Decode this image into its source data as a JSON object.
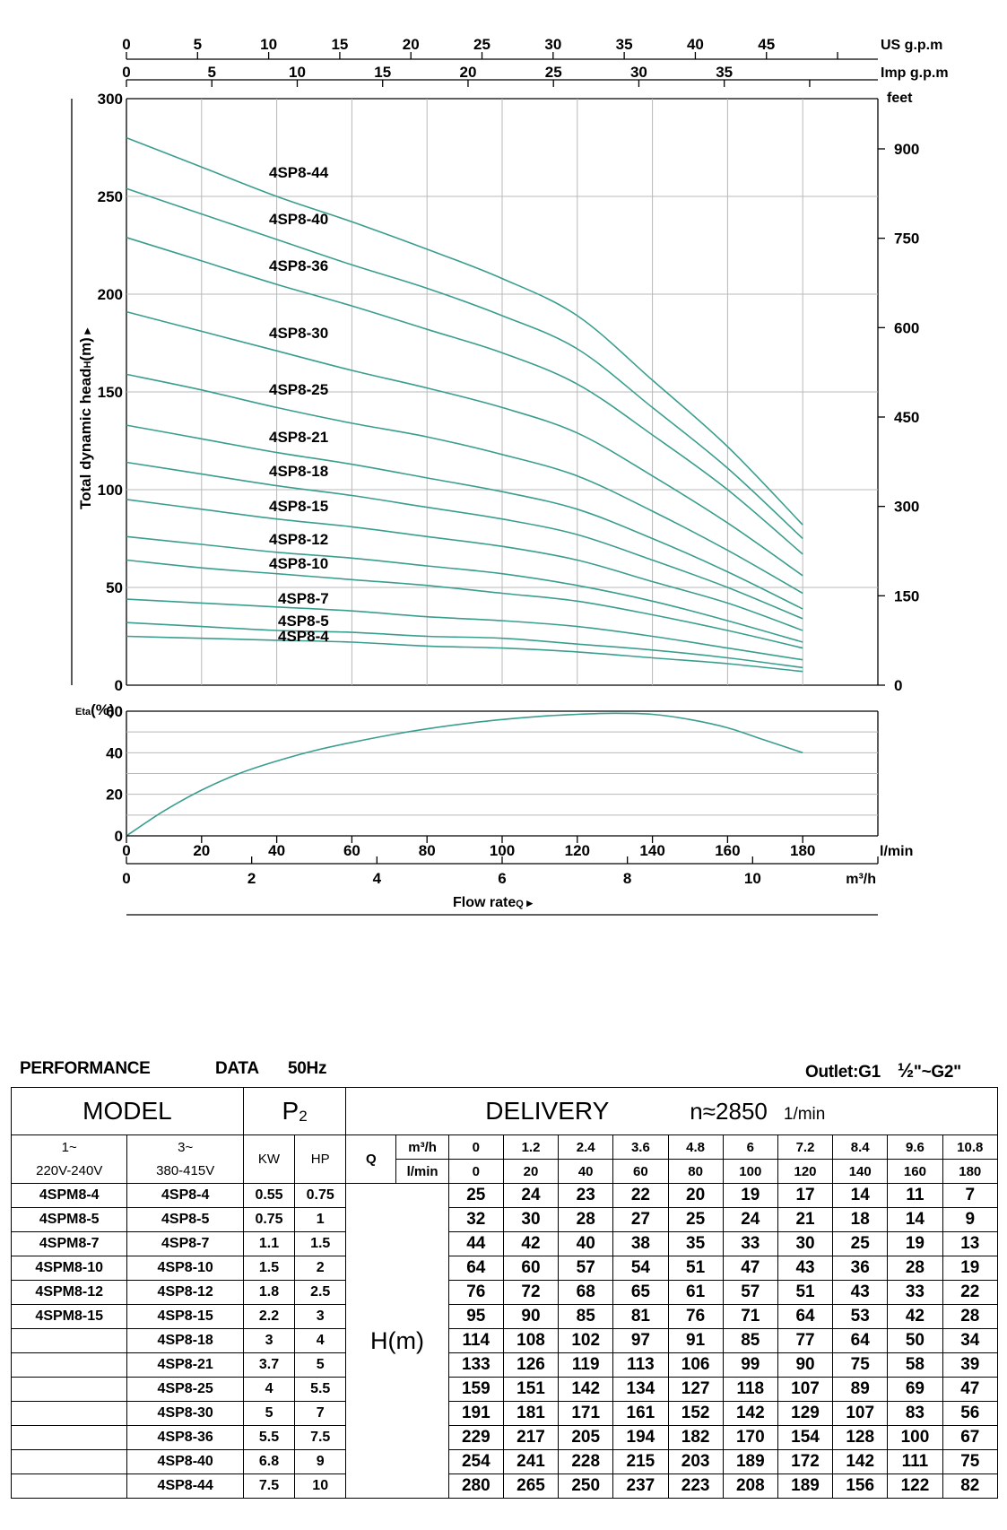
{
  "chart_data": [
    {
      "type": "line",
      "title": "",
      "ylabel": "Total dynamic head",
      "ylabel_symbol": "H",
      "ylabel_unit": "(m)",
      "xlabel": "Flow rate",
      "xlabel_symbol": "Q",
      "x_unit": "l/min",
      "xlim": [
        0,
        200
      ],
      "ylim": [
        0,
        300
      ],
      "y_ticks": [
        0,
        50,
        100,
        150,
        200,
        250,
        300
      ],
      "x_ticks": [
        0,
        20,
        40,
        60,
        80,
        100,
        120,
        140,
        160,
        180
      ],
      "grid": true,
      "right_axis": {
        "unit": "feet",
        "ticks": [
          0,
          150,
          300,
          450,
          600,
          750,
          900
        ]
      },
      "top_axis_us": {
        "unit": "US g.p.m",
        "ticks": [
          0,
          5,
          10,
          15,
          20,
          25,
          30,
          35,
          40,
          45
        ]
      },
      "top_axis_imp": {
        "unit": "Imp g.p.m",
        "ticks": [
          0,
          5,
          10,
          15,
          20,
          25,
          30,
          35
        ]
      },
      "bottom_axis_m3h": {
        "unit": "m³/h",
        "ticks": [
          0,
          2,
          4,
          6,
          8,
          10
        ]
      },
      "x": [
        0,
        20,
        40,
        60,
        80,
        100,
        120,
        140,
        160,
        180
      ],
      "series": [
        {
          "name": "4SP8-44",
          "values": [
            280,
            265,
            250,
            237,
            223,
            208,
            189,
            156,
            122,
            82
          ]
        },
        {
          "name": "4SP8-40",
          "values": [
            254,
            241,
            228,
            215,
            203,
            189,
            172,
            142,
            111,
            75
          ]
        },
        {
          "name": "4SP8-36",
          "values": [
            229,
            217,
            205,
            194,
            182,
            170,
            154,
            128,
            100,
            67
          ]
        },
        {
          "name": "4SP8-30",
          "values": [
            191,
            181,
            171,
            161,
            152,
            142,
            129,
            107,
            83,
            56
          ]
        },
        {
          "name": "4SP8-25",
          "values": [
            159,
            151,
            142,
            134,
            127,
            118,
            107,
            89,
            69,
            47
          ]
        },
        {
          "name": "4SP8-21",
          "values": [
            133,
            126,
            119,
            113,
            106,
            99,
            90,
            75,
            58,
            39
          ]
        },
        {
          "name": "4SP8-18",
          "values": [
            114,
            108,
            102,
            97,
            91,
            85,
            77,
            64,
            50,
            34
          ]
        },
        {
          "name": "4SP8-15",
          "values": [
            95,
            90,
            85,
            81,
            76,
            71,
            64,
            53,
            42,
            28
          ]
        },
        {
          "name": "4SP8-12",
          "values": [
            76,
            72,
            68,
            65,
            61,
            57,
            51,
            43,
            33,
            22
          ]
        },
        {
          "name": "4SP8-10",
          "values": [
            64,
            60,
            57,
            54,
            51,
            47,
            43,
            36,
            28,
            19
          ]
        },
        {
          "name": "4SP8-7",
          "values": [
            44,
            42,
            40,
            38,
            35,
            33,
            30,
            25,
            19,
            13
          ]
        },
        {
          "name": "4SP8-5",
          "values": [
            32,
            30,
            28,
            27,
            25,
            24,
            21,
            18,
            14,
            9
          ]
        },
        {
          "name": "4SP8-4",
          "values": [
            25,
            24,
            23,
            22,
            20,
            19,
            17,
            14,
            11,
            7
          ]
        }
      ]
    },
    {
      "type": "line",
      "ylabel": "Eta",
      "ylabel_unit": "(%)",
      "ylim": [
        0,
        60
      ],
      "y_ticks": [
        0,
        20,
        40,
        60
      ],
      "xlim": [
        0,
        200
      ],
      "grid": true,
      "x": [
        0,
        10,
        20,
        30,
        40,
        50,
        60,
        70,
        80,
        90,
        100,
        110,
        120,
        130,
        140,
        150,
        160,
        170,
        180
      ],
      "series": [
        {
          "values": [
            0,
            12,
            22,
            30,
            36,
            41,
            45,
            48.5,
            51.5,
            54,
            56,
            57.5,
            58.5,
            59,
            58.5,
            56,
            52,
            46,
            40
          ]
        }
      ]
    }
  ],
  "table": {
    "title": "PERFORMANCE",
    "data_word": "DATA",
    "freq": "50Hz",
    "outlet": "Outlet:G1",
    "outlet_frac": "½",
    "outlet_end": "\"~G2\"",
    "model": "MODEL",
    "p2": "P",
    "p2_sub": "2",
    "delivery": "DELIVERY",
    "n_label": "n≈2850",
    "n_unit": "1/min",
    "single_phase_1": "1~",
    "single_phase_2": "220V-240V",
    "three_phase_1": "3~",
    "three_phase_2": "380-415V",
    "kw": "KW",
    "hp": "HP",
    "q": "Q",
    "m3h_unit": "m³/h",
    "lmin_unit": "l/min",
    "hm": "H(m)",
    "m3h": [
      "0",
      "1.2",
      "2.4",
      "3.6",
      "4.8",
      "6",
      "7.2",
      "8.4",
      "9.6",
      "10.8"
    ],
    "lmin": [
      "0",
      "20",
      "40",
      "60",
      "80",
      "100",
      "120",
      "140",
      "160",
      "180"
    ],
    "rows": [
      {
        "m1": "4SPM8-4",
        "m3": "4SP8-4",
        "kw": "0.55",
        "hp": "0.75",
        "h": [
          "25",
          "24",
          "23",
          "22",
          "20",
          "19",
          "17",
          "14",
          "11",
          "7"
        ]
      },
      {
        "m1": "4SPM8-5",
        "m3": "4SP8-5",
        "kw": "0.75",
        "hp": "1",
        "h": [
          "32",
          "30",
          "28",
          "27",
          "25",
          "24",
          "21",
          "18",
          "14",
          "9"
        ]
      },
      {
        "m1": "4SPM8-7",
        "m3": "4SP8-7",
        "kw": "1.1",
        "hp": "1.5",
        "h": [
          "44",
          "42",
          "40",
          "38",
          "35",
          "33",
          "30",
          "25",
          "19",
          "13"
        ]
      },
      {
        "m1": "4SPM8-10",
        "m3": "4SP8-10",
        "kw": "1.5",
        "hp": "2",
        "h": [
          "64",
          "60",
          "57",
          "54",
          "51",
          "47",
          "43",
          "36",
          "28",
          "19"
        ]
      },
      {
        "m1": "4SPM8-12",
        "m3": "4SP8-12",
        "kw": "1.8",
        "hp": "2.5",
        "h": [
          "76",
          "72",
          "68",
          "65",
          "61",
          "57",
          "51",
          "43",
          "33",
          "22"
        ]
      },
      {
        "m1": "4SPM8-15",
        "m3": "4SP8-15",
        "kw": "2.2",
        "hp": "3",
        "h": [
          "95",
          "90",
          "85",
          "81",
          "76",
          "71",
          "64",
          "53",
          "42",
          "28"
        ]
      },
      {
        "m1": "",
        "m3": "4SP8-18",
        "kw": "3",
        "hp": "4",
        "h": [
          "114",
          "108",
          "102",
          "97",
          "91",
          "85",
          "77",
          "64",
          "50",
          "34"
        ]
      },
      {
        "m1": "",
        "m3": "4SP8-21",
        "kw": "3.7",
        "hp": "5",
        "h": [
          "133",
          "126",
          "119",
          "113",
          "106",
          "99",
          "90",
          "75",
          "58",
          "39"
        ]
      },
      {
        "m1": "",
        "m3": "4SP8-25",
        "kw": "4",
        "hp": "5.5",
        "h": [
          "159",
          "151",
          "142",
          "134",
          "127",
          "118",
          "107",
          "89",
          "69",
          "47"
        ]
      },
      {
        "m1": "",
        "m3": "4SP8-30",
        "kw": "5",
        "hp": "7",
        "h": [
          "191",
          "181",
          "171",
          "161",
          "152",
          "142",
          "129",
          "107",
          "83",
          "56"
        ]
      },
      {
        "m1": "",
        "m3": "4SP8-36",
        "kw": "5.5",
        "hp": "7.5",
        "h": [
          "229",
          "217",
          "205",
          "194",
          "182",
          "170",
          "154",
          "128",
          "100",
          "67"
        ]
      },
      {
        "m1": "",
        "m3": "4SP8-40",
        "kw": "6.8",
        "hp": "9",
        "h": [
          "254",
          "241",
          "228",
          "215",
          "203",
          "189",
          "172",
          "142",
          "111",
          "75"
        ]
      },
      {
        "m1": "",
        "m3": "4SP8-44",
        "kw": "7.5",
        "hp": "10",
        "h": [
          "280",
          "265",
          "250",
          "237",
          "223",
          "208",
          "189",
          "156",
          "122",
          "82"
        ]
      }
    ]
  },
  "colors": {
    "curve": "#3a9e8f",
    "grid": "#b8b8b8",
    "axis": "#000000"
  }
}
